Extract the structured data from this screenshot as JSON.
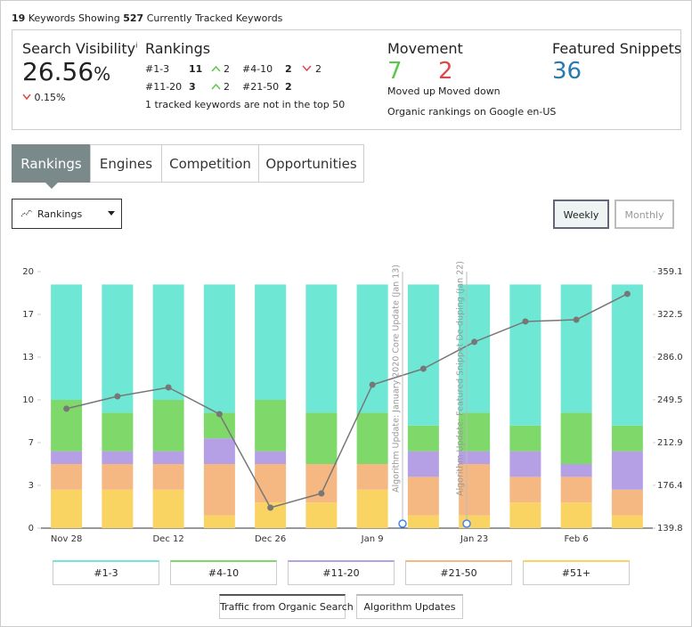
{
  "header": {
    "keyword_count": 19,
    "keyword_text": "Keywords Showing",
    "tracked_count": 527,
    "tracked_text": "Currently Tracked Keywords"
  },
  "summary": {
    "visibility": {
      "title": "Search Visibility",
      "info": "i",
      "value": "26.56",
      "unit": "%",
      "change": "0.15%"
    },
    "rankings": {
      "title": "Rankings",
      "items": [
        {
          "label": "#1-3",
          "count": 11,
          "change": 2
        },
        {
          "label": "#4-10",
          "count": 2,
          "change": 2
        },
        {
          "label": "#11-20",
          "count": 3,
          "change": 2
        },
        {
          "label": "#21-50",
          "count": 2
        }
      ],
      "note": "1 tracked keywords are not in the top 50"
    },
    "movement": {
      "title": "Movement",
      "up": 7,
      "up_label": "Moved up",
      "down": 2,
      "down_label": "Moved down",
      "note": "Organic rankings on Google en-US"
    },
    "snippets": {
      "title": "Featured Snippets",
      "value": 36
    }
  },
  "tabs": [
    "Rankings",
    "Engines",
    "Competition",
    "Opportunities"
  ],
  "dropdown": "Rankings",
  "toggles": [
    "Weekly",
    "Monthly"
  ],
  "chart_data": {
    "type": "bar",
    "stacked": true,
    "categories": [
      "Nov 28",
      null,
      "Dec 12",
      null,
      "Dec 26",
      null,
      "Jan 9",
      null,
      "Jan 23",
      null,
      "Feb 6",
      null
    ],
    "ylim": [
      0,
      20
    ],
    "yticks": [
      0,
      {
        "value": 3.333,
        "label": "3"
      },
      {
        "value": 6.667,
        "label": "7"
      },
      10,
      {
        "value": 13.333,
        "label": "13"
      },
      {
        "value": 16.667,
        "label": "17"
      },
      20
    ],
    "y2lim": [
      139.8,
      359.1
    ],
    "y2ticks": [
      139.8,
      176.4,
      212.9,
      249.5,
      {
        "value": 286,
        "label": "286.0"
      },
      322.5,
      359.1
    ],
    "series": [
      {
        "name": "#51+",
        "color": "#fad463",
        "values": [
          3,
          3,
          3,
          1,
          2,
          2,
          3,
          1,
          1,
          2,
          2,
          1
        ]
      },
      {
        "name": "#21-50",
        "color": "#f5b882",
        "values": [
          2,
          2,
          2,
          4,
          3,
          3,
          2,
          3,
          4,
          2,
          2,
          2
        ]
      },
      {
        "name": "#11-20",
        "color": "#b5a0e6",
        "values": [
          1,
          1,
          1,
          2,
          1,
          0,
          0,
          2,
          1,
          2,
          1,
          3
        ]
      },
      {
        "name": "#4-10",
        "color": "#7ed96a",
        "values": [
          4,
          3,
          4,
          2,
          4,
          4,
          4,
          2,
          3,
          2,
          4,
          2
        ]
      },
      {
        "name": "#1-3",
        "color": "#6ee8d4",
        "values": [
          9,
          10,
          9,
          10,
          9,
          10,
          10,
          11,
          10,
          11,
          10,
          11
        ]
      },
      {
        "name": "Traffic from Organic Search",
        "color": "#777777",
        "type": "line",
        "axis": "y2",
        "values": [
          241.9,
          252.5,
          260.1,
          237.3,
          157.3,
          169.5,
          262.4,
          276.1,
          299,
          316.5,
          318,
          340.1
        ]
      }
    ],
    "algorithm_updates": {
      "name": "Algorithm Updates",
      "labels": [
        "Algorithm Update: January 2020 Core Update (Jan 13)",
        "Algorithm Update: Featured Snippet De-duping (Jan 22)"
      ]
    }
  }
}
